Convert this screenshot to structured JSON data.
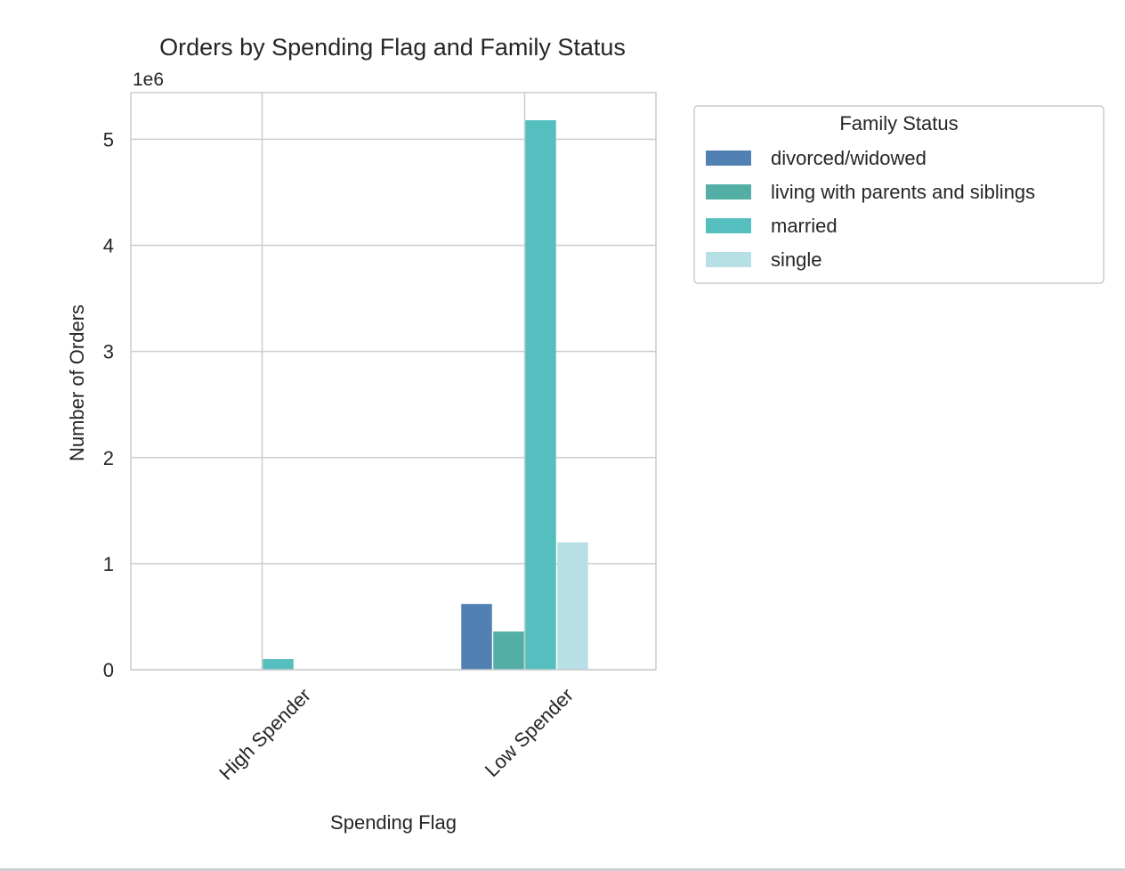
{
  "chart_data": {
    "type": "bar",
    "title": "Orders by Spending Flag and Family Status",
    "xlabel": "Spending Flag",
    "ylabel": "Number of Orders",
    "y_offset_label": "1e6",
    "categories": [
      "High Spender",
      "Low Spender"
    ],
    "yticks": [
      0,
      1,
      2,
      3,
      4,
      5
    ],
    "ylim": [
      0,
      5.44
    ],
    "grid": true,
    "legend": {
      "title": "Family Status",
      "position": "outside-right-top"
    },
    "series": [
      {
        "name": "divorced/widowed",
        "color": "#5180b3",
        "values": [
          0.004,
          0.62
        ]
      },
      {
        "name": "living with parents and siblings",
        "color": "#53afa6",
        "values": [
          0.002,
          0.36
        ]
      },
      {
        "name": "married",
        "color": "#55bebf",
        "values": [
          0.1,
          5.18
        ]
      },
      {
        "name": "single",
        "color": "#b6dfe6",
        "values": [
          0.003,
          1.2
        ]
      }
    ]
  }
}
